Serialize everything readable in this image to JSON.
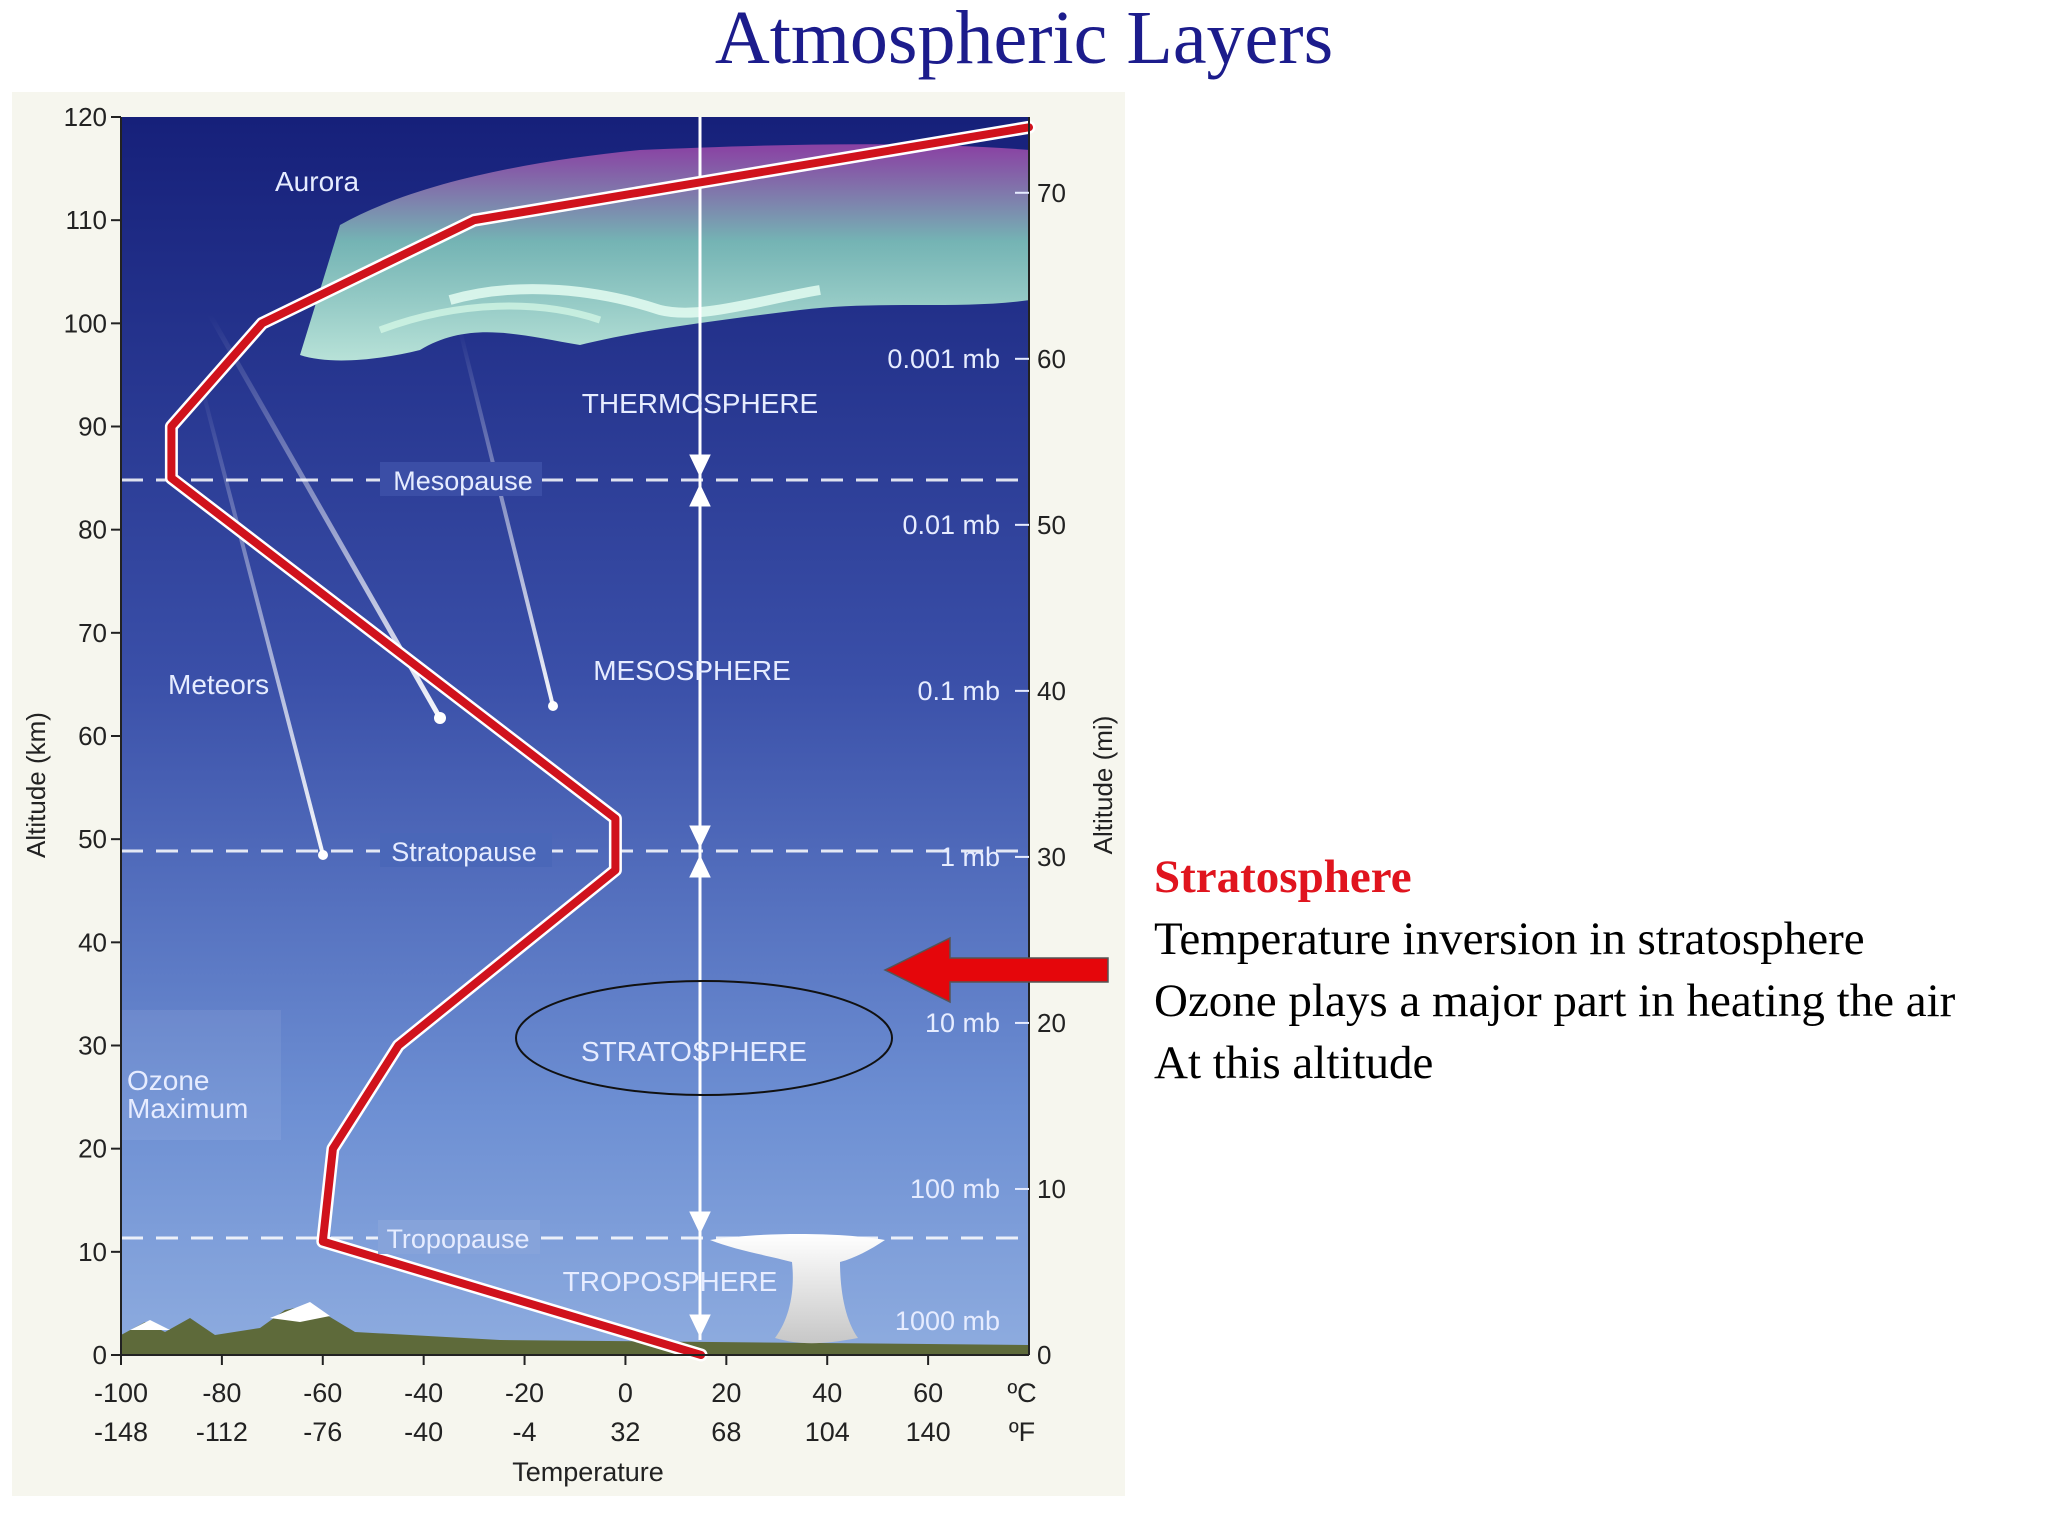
{
  "title": "Atmospheric Layers",
  "diagram": {
    "y_axis_left": {
      "label": "Altitude (km)",
      "ticks": [
        "0",
        "10",
        "20",
        "30",
        "40",
        "50",
        "60",
        "70",
        "80",
        "90",
        "100",
        "110",
        "120"
      ]
    },
    "y_axis_right": {
      "label": "Altitude (mi)",
      "ticks": [
        "0",
        "10",
        "20",
        "30",
        "40",
        "50",
        "60",
        "70"
      ]
    },
    "x_axis": {
      "label": "Temperature",
      "celsius_ticks": [
        "-100",
        "-80",
        "-60",
        "-40",
        "-20",
        "0",
        "20",
        "40",
        "60"
      ],
      "fahrenheit_ticks": [
        "-148",
        "-112",
        "-76",
        "-40",
        "-4",
        "32",
        "68",
        "104",
        "140"
      ],
      "celsius_unit": "ºC",
      "fahrenheit_unit": "ºF"
    },
    "layers": {
      "thermosphere": "THERMOSPHERE",
      "mesosphere": "MESOSPHERE",
      "stratosphere": "STRATOSPHERE",
      "troposphere": "TROPOSPHERE"
    },
    "boundaries": {
      "mesopause": "Mesopause",
      "stratopause": "Stratopause",
      "tropopause": "Tropopause"
    },
    "pressures": [
      "0.001 mb",
      "0.01 mb",
      "0.1 mb",
      "1 mb",
      "10 mb",
      "100 mb",
      "1000 mb"
    ],
    "annotations": {
      "aurora": "Aurora",
      "meteors": "Meteors",
      "ozone_line1": "Ozone",
      "ozone_line2": "Maximum"
    },
    "temperature_profile_celsius": [
      {
        "alt_km": 0,
        "temp_c": 15
      },
      {
        "alt_km": 11,
        "temp_c": -60
      },
      {
        "alt_km": 20,
        "temp_c": -58
      },
      {
        "alt_km": 30,
        "temp_c": -45
      },
      {
        "alt_km": 47,
        "temp_c": -2
      },
      {
        "alt_km": 52,
        "temp_c": -2
      },
      {
        "alt_km": 85,
        "temp_c": -90
      },
      {
        "alt_km": 90,
        "temp_c": -90
      },
      {
        "alt_km": 100,
        "temp_c": -72
      },
      {
        "alt_km": 110,
        "temp_c": -30
      },
      {
        "alt_km": 119,
        "temp_c": 80
      }
    ]
  },
  "notes": {
    "heading": "Stratosphere",
    "line1": "Temperature inversion in stratosphere",
    "line2": "Ozone plays a major part in heating the air",
    "line3": "At this altitude"
  },
  "colors": {
    "title": "#1c1c8c",
    "profile": "#d0121c",
    "heading": "#e0141e",
    "arrow": "#e5060b"
  }
}
